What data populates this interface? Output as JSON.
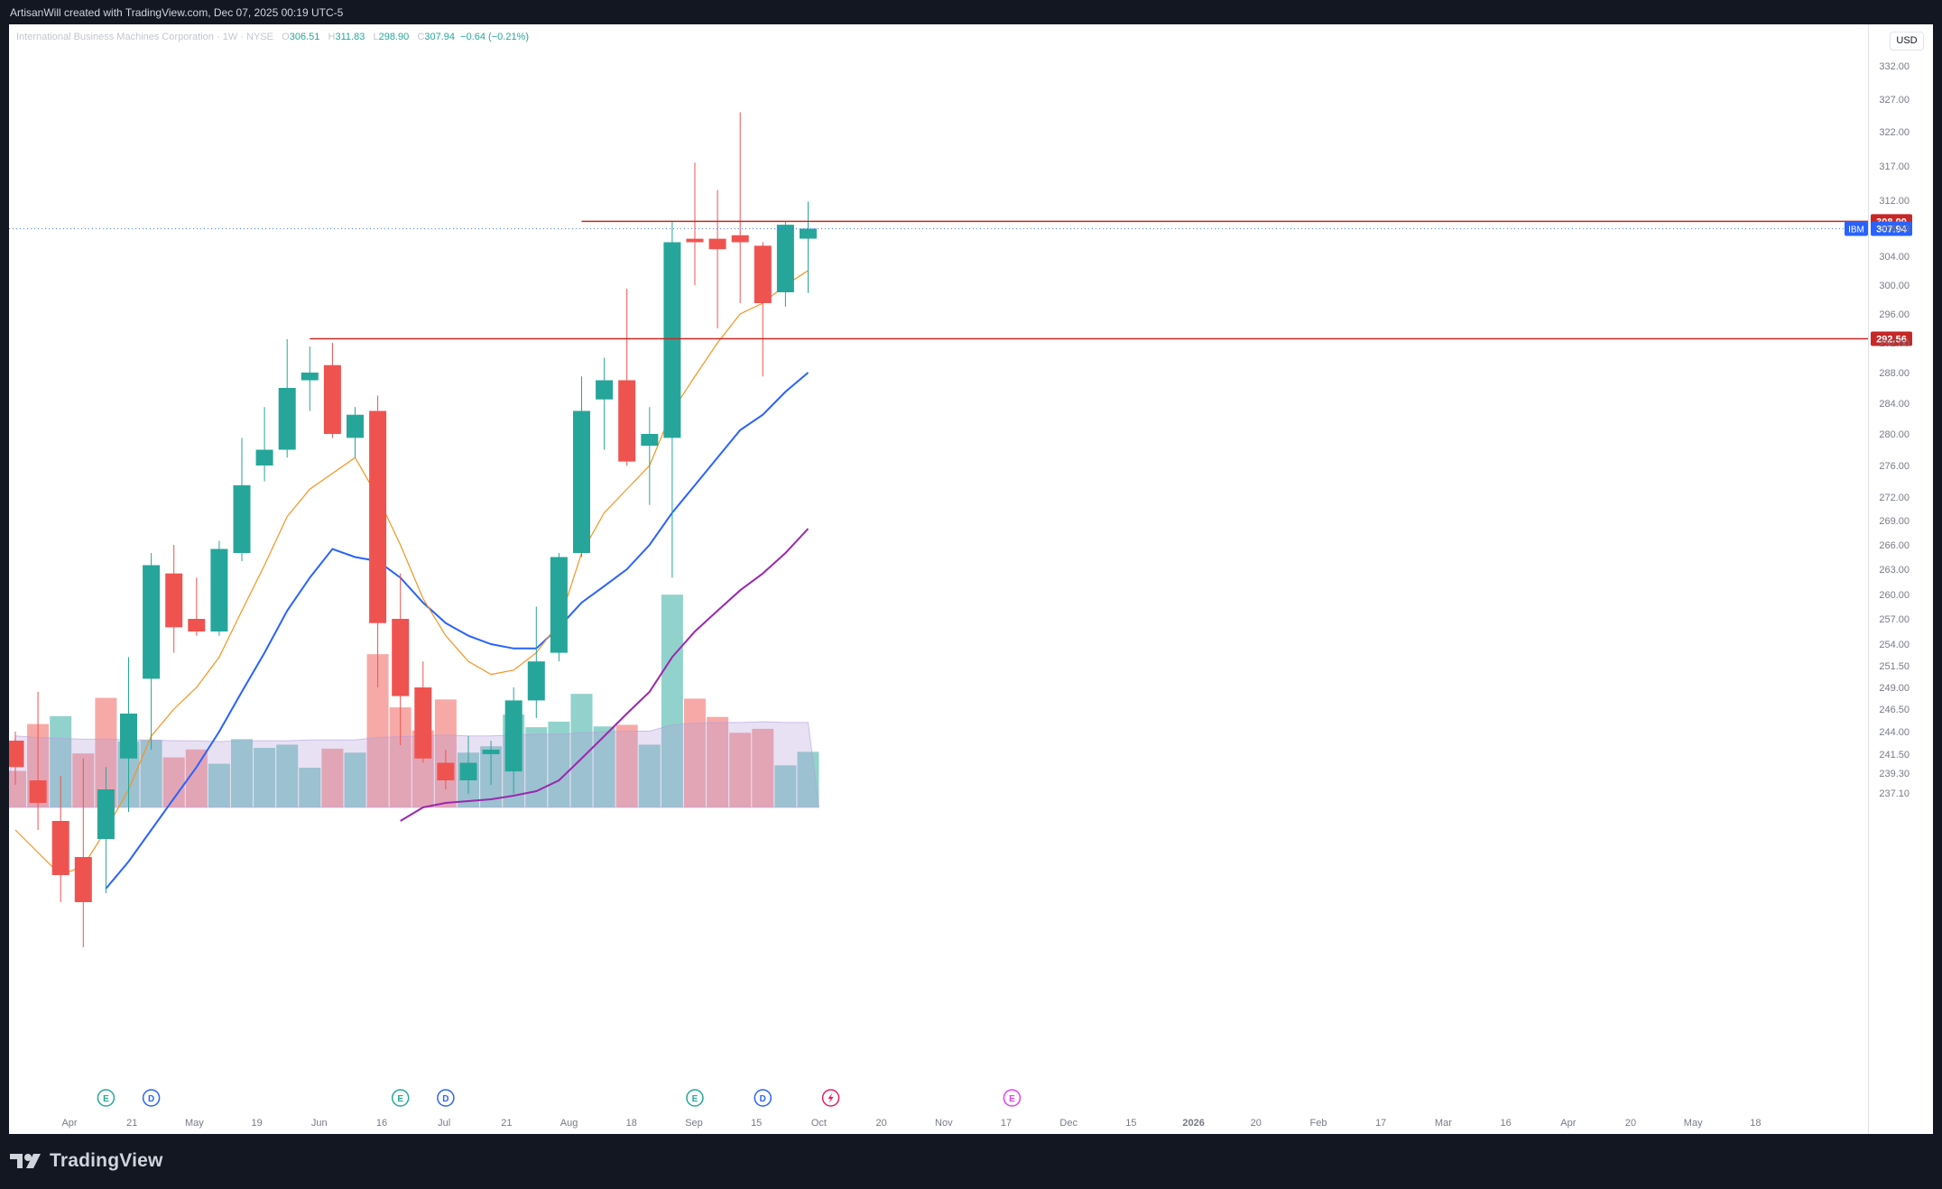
{
  "caption": "ArtisanWill created with TradingView.com, Dec 07, 2025 00:19 UTC-5",
  "brand": "TradingView",
  "legend": {
    "symbol_name": "International Business Machines Corporation",
    "interval": "1W",
    "exchange": "NYSE",
    "open": "306.51",
    "high": "311.83",
    "low": "298.90",
    "close": "307.94",
    "change": "−0.64 (−0.21%)"
  },
  "currency": "USD",
  "colors": {
    "up": "#26a69a",
    "down": "#ef5350",
    "ma_orange": "#f7931e",
    "ma_blue": "#2962ff",
    "ma_purple": "#9c27b0",
    "level_line": "#c62828",
    "price_label": "#2962ff"
  },
  "chart_data": {
    "type": "candlestick",
    "symbol": "IBM",
    "y_axis_ticks": [
      "332.00",
      "327.00",
      "322.00",
      "317.00",
      "312.00",
      "308.00",
      "304.00",
      "300.00",
      "296.00",
      "292.00",
      "288.00",
      "284.00",
      "280.00",
      "276.00",
      "272.00",
      "269.00",
      "266.00",
      "263.00",
      "260.00",
      "257.00",
      "254.00",
      "251.50",
      "249.00",
      "246.50",
      "244.00",
      "241.50",
      "239.30",
      "237.10"
    ],
    "x_axis_labels": [
      "Apr",
      "21",
      "May",
      "19",
      "Jun",
      "16",
      "Jul",
      "21",
      "Aug",
      "18",
      "Sep",
      "15",
      "Oct",
      "20",
      "Nov",
      "17",
      "Dec",
      "15",
      "2026",
      "20",
      "Feb",
      "17",
      "Mar",
      "16",
      "Apr",
      "20",
      "May",
      "18"
    ],
    "candles": [
      {
        "o": 243.0,
        "h": 244.0,
        "l": 238.0,
        "c": 240.0
      },
      {
        "o": 238.5,
        "h": 248.5,
        "l": 233.0,
        "c": 236.0
      },
      {
        "o": 234.0,
        "h": 239.0,
        "l": 225.0,
        "c": 228.0
      },
      {
        "o": 230.0,
        "h": 241.0,
        "l": 220.0,
        "c": 225.0
      },
      {
        "o": 232.0,
        "h": 240.0,
        "l": 226.0,
        "c": 237.5
      },
      {
        "o": 241.0,
        "h": 252.5,
        "l": 235.0,
        "c": 246.0
      },
      {
        "o": 250.0,
        "h": 265.0,
        "l": 242.0,
        "c": 263.5
      },
      {
        "o": 262.5,
        "h": 266.0,
        "l": 253.0,
        "c": 256.0
      },
      {
        "o": 257.0,
        "h": 262.0,
        "l": 255.0,
        "c": 255.5
      },
      {
        "o": 255.5,
        "h": 266.5,
        "l": 255.0,
        "c": 265.5
      },
      {
        "o": 265.0,
        "h": 279.5,
        "l": 264.0,
        "c": 273.5
      },
      {
        "o": 276.0,
        "h": 283.5,
        "l": 274.0,
        "c": 278.0
      },
      {
        "o": 278.0,
        "h": 292.5,
        "l": 277.0,
        "c": 286.0
      },
      {
        "o": 287.0,
        "h": 291.5,
        "l": 283.0,
        "c": 288.0
      },
      {
        "o": 289.0,
        "h": 292.0,
        "l": 279.5,
        "c": 280.0
      },
      {
        "o": 279.5,
        "h": 283.5,
        "l": 277.0,
        "c": 282.5
      },
      {
        "o": 283.0,
        "h": 285.0,
        "l": 249.0,
        "c": 256.5
      },
      {
        "o": 257.0,
        "h": 262.5,
        "l": 242.5,
        "c": 248.0
      },
      {
        "o": 249.0,
        "h": 252.0,
        "l": 240.5,
        "c": 241.0
      },
      {
        "o": 240.5,
        "h": 242.0,
        "l": 237.5,
        "c": 238.5
      },
      {
        "o": 238.5,
        "h": 243.5,
        "l": 237.0,
        "c": 240.5
      },
      {
        "o": 241.5,
        "h": 243.0,
        "l": 238.0,
        "c": 242.0
      },
      {
        "o": 239.5,
        "h": 249.0,
        "l": 237.0,
        "c": 247.5
      },
      {
        "o": 247.5,
        "h": 258.5,
        "l": 245.5,
        "c": 252.0
      },
      {
        "o": 253.0,
        "h": 265.0,
        "l": 252.0,
        "c": 264.5
      },
      {
        "o": 265.0,
        "h": 287.5,
        "l": 264.5,
        "c": 283.0
      },
      {
        "o": 284.5,
        "h": 290.0,
        "l": 278.0,
        "c": 287.0
      },
      {
        "o": 287.0,
        "h": 299.5,
        "l": 276.0,
        "c": 276.5
      },
      {
        "o": 278.5,
        "h": 283.5,
        "l": 271.0,
        "c": 280.0
      },
      {
        "o": 279.5,
        "h": 309.0,
        "l": 262.0,
        "c": 306.0
      },
      {
        "o": 306.5,
        "h": 317.5,
        "l": 300.0,
        "c": 306.0
      },
      {
        "o": 306.5,
        "h": 313.5,
        "l": 294.0,
        "c": 305.0
      },
      {
        "o": 307.0,
        "h": 325.0,
        "l": 297.5,
        "c": 306.0
      },
      {
        "o": 305.5,
        "h": 306.0,
        "l": 287.5,
        "c": 297.5
      },
      {
        "o": 299.0,
        "h": 309.0,
        "l": 297.0,
        "c": 308.5
      },
      {
        "o": 306.51,
        "h": 311.83,
        "l": 298.9,
        "c": 307.94
      }
    ],
    "volume": [
      {
        "v": 46,
        "up": false
      },
      {
        "v": 105,
        "up": false
      },
      {
        "v": 115,
        "up": true
      },
      {
        "v": 68,
        "up": false
      },
      {
        "v": 138,
        "up": false
      },
      {
        "v": 83,
        "up": true
      },
      {
        "v": 85,
        "up": true
      },
      {
        "v": 63,
        "up": false
      },
      {
        "v": 73,
        "up": false
      },
      {
        "v": 55,
        "up": true
      },
      {
        "v": 86,
        "up": true
      },
      {
        "v": 75,
        "up": true
      },
      {
        "v": 79,
        "up": true
      },
      {
        "v": 50,
        "up": true
      },
      {
        "v": 74,
        "up": false
      },
      {
        "v": 69,
        "up": true
      },
      {
        "v": 193,
        "up": false
      },
      {
        "v": 126,
        "up": false
      },
      {
        "v": 97,
        "up": false
      },
      {
        "v": 136,
        "up": false
      },
      {
        "v": 69,
        "up": true
      },
      {
        "v": 77,
        "up": true
      },
      {
        "v": 117,
        "up": true
      },
      {
        "v": 101,
        "up": true
      },
      {
        "v": 108,
        "up": true
      },
      {
        "v": 143,
        "up": true
      },
      {
        "v": 102,
        "up": true
      },
      {
        "v": 104,
        "up": false
      },
      {
        "v": 79,
        "up": true
      },
      {
        "v": 268,
        "up": true
      },
      {
        "v": 137,
        "up": false
      },
      {
        "v": 114,
        "up": false
      },
      {
        "v": 94,
        "up": false
      },
      {
        "v": 99,
        "up": false
      },
      {
        "v": 53,
        "up": true
      },
      {
        "v": 70,
        "up": true
      }
    ],
    "volume_ma": [
      90,
      88,
      87,
      86,
      86,
      85,
      85,
      84,
      84,
      83,
      84,
      84,
      84,
      85,
      85,
      85,
      88,
      89,
      90,
      91,
      90,
      90,
      91,
      92,
      92,
      94,
      95,
      96,
      96,
      104,
      106,
      107,
      107,
      108,
      107,
      107
    ],
    "ma_fast": [
      233.0,
      230.5,
      228.0,
      229.0,
      233.0,
      237.5,
      243.5,
      246.5,
      249.0,
      252.5,
      258.0,
      263.5,
      269.5,
      273.0,
      275.0,
      277.0,
      272.0,
      266.0,
      259.5,
      255.0,
      252.0,
      250.5,
      251.0,
      253.0,
      256.5,
      265.0,
      270.0,
      273.0,
      276.0,
      283.0,
      287.5,
      292.0,
      296.0,
      297.5,
      300.0,
      302.0
    ],
    "ma_mid": [
      null,
      null,
      null,
      null,
      226.5,
      229.5,
      233.0,
      236.5,
      240.0,
      244.0,
      248.5,
      253.0,
      258.0,
      262.0,
      265.5,
      264.5,
      264.0,
      262.0,
      259.0,
      256.5,
      255.0,
      254.0,
      253.5,
      253.5,
      256.0,
      259.0,
      261.0,
      263.0,
      266.0,
      270.0,
      273.5,
      277.0,
      280.5,
      282.5,
      285.5,
      288.0
    ],
    "ma_slow": [
      null,
      null,
      null,
      null,
      null,
      null,
      null,
      null,
      null,
      null,
      null,
      null,
      null,
      null,
      null,
      null,
      null,
      234.0,
      235.5,
      236.0,
      236.2,
      236.4,
      236.8,
      237.3,
      238.5,
      241.0,
      243.5,
      246.0,
      248.5,
      252.5,
      255.5,
      258.0,
      260.5,
      262.5,
      265.0,
      268.0
    ],
    "levels": [
      {
        "value": 308.99,
        "label": "308.99",
        "start": 25
      },
      {
        "value": 292.56,
        "label": "292.56",
        "start": 13
      }
    ],
    "last_price": {
      "value": 307.94,
      "label": "307.94",
      "symbol": "IBM"
    },
    "events": [
      {
        "i": 4,
        "type": "E"
      },
      {
        "i": 6,
        "type": "D"
      },
      {
        "i": 17,
        "type": "E"
      },
      {
        "i": 19,
        "type": "D"
      },
      {
        "i": 30,
        "type": "E"
      },
      {
        "i": 33,
        "type": "D"
      },
      {
        "i": 36,
        "type": "split"
      },
      {
        "i": 44,
        "type": "E-future"
      }
    ]
  }
}
